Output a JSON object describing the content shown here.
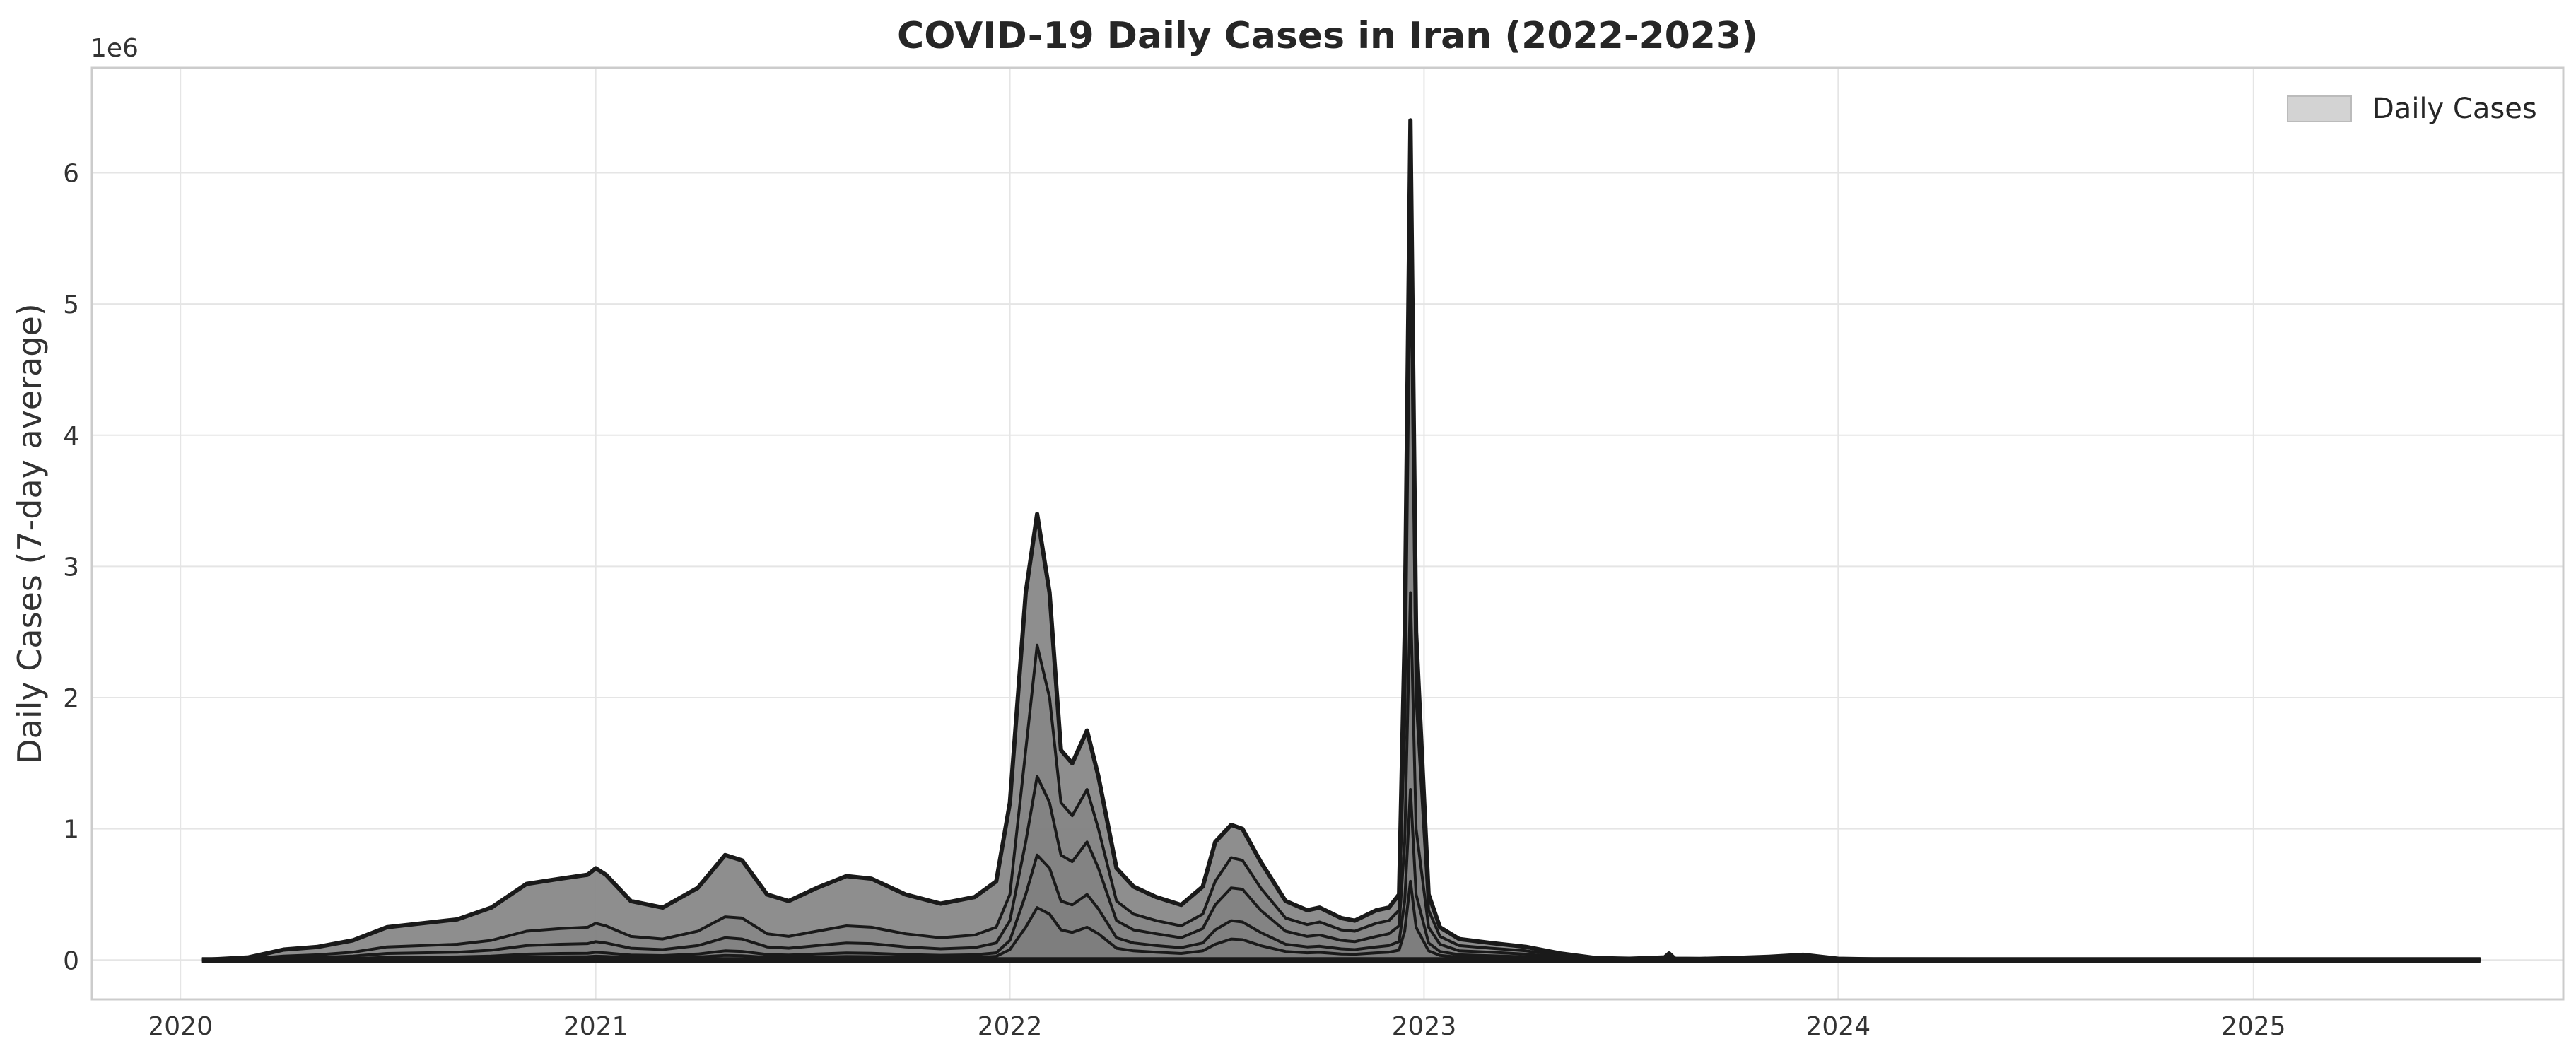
{
  "chart_data": {
    "type": "area",
    "title": "COVID-19 Daily Cases in Iran (2022-2023)",
    "xlabel": "",
    "ylabel": "Daily Cases (7-day average)",
    "y_scale_note": "1e6",
    "xlim": [
      "2019-10-15",
      "2025-10-01"
    ],
    "ylim": [
      -300000,
      6800000
    ],
    "x_ticks": [
      {
        "date": "2020-01-01",
        "label": "2020"
      },
      {
        "date": "2021-01-01",
        "label": "2021"
      },
      {
        "date": "2022-01-01",
        "label": "2022"
      },
      {
        "date": "2023-01-01",
        "label": "2023"
      },
      {
        "date": "2024-01-01",
        "label": "2024"
      },
      {
        "date": "2025-01-01",
        "label": "2025"
      }
    ],
    "y_ticks": [
      {
        "value": 0,
        "label": "0"
      },
      {
        "value": 1000000,
        "label": "1"
      },
      {
        "value": 2000000,
        "label": "2"
      },
      {
        "value": 3000000,
        "label": "3"
      },
      {
        "value": 4000000,
        "label": "4"
      },
      {
        "value": 5000000,
        "label": "5"
      },
      {
        "value": 6000000,
        "label": "6"
      }
    ],
    "grid": true,
    "legend": {
      "position": "top-right",
      "entries": [
        {
          "label": "Daily Cases",
          "color": "#d3d3d3"
        }
      ]
    },
    "colors": {
      "fill": "#888888",
      "line": "#1a1a1a",
      "grid": "#e5e5e5",
      "frame": "#cccccc"
    },
    "envelope": {
      "x": [
        "2020-01-20",
        "2020-03-01",
        "2020-04-01",
        "2020-05-01",
        "2020-06-01",
        "2020-07-01",
        "2020-08-01",
        "2020-09-01",
        "2020-10-01",
        "2020-11-01",
        "2020-12-01",
        "2020-12-25",
        "2021-01-01",
        "2021-01-10",
        "2021-02-01",
        "2021-03-01",
        "2021-04-01",
        "2021-04-25",
        "2021-05-10",
        "2021-06-01",
        "2021-06-20",
        "2021-07-15",
        "2021-08-10",
        "2021-09-01",
        "2021-10-01",
        "2021-11-01",
        "2021-12-01",
        "2021-12-20",
        "2022-01-01",
        "2022-01-15",
        "2022-01-25",
        "2022-02-05",
        "2022-02-15",
        "2022-02-25",
        "2022-03-10",
        "2022-03-20",
        "2022-04-05",
        "2022-04-20",
        "2022-05-10",
        "2022-06-01",
        "2022-06-20",
        "2022-07-01",
        "2022-07-15",
        "2022-07-25",
        "2022-08-10",
        "2022-09-01",
        "2022-09-20",
        "2022-10-01",
        "2022-10-20",
        "2022-11-01",
        "2022-11-20",
        "2022-12-01",
        "2022-12-10",
        "2022-12-15",
        "2022-12-20",
        "2022-12-25",
        "2023-01-05",
        "2023-01-15",
        "2023-02-01",
        "2023-03-01",
        "2023-04-01",
        "2023-05-01",
        "2023-06-01",
        "2023-07-01",
        "2023-08-01",
        "2023-08-05",
        "2023-08-10",
        "2023-09-01",
        "2023-10-01",
        "2023-11-01",
        "2023-12-01",
        "2024-01-01",
        "2024-02-01",
        "2024-06-01",
        "2025-01-01",
        "2025-06-01",
        "2025-07-20"
      ],
      "y": [
        0,
        20000,
        80000,
        100000,
        150000,
        250000,
        280000,
        310000,
        400000,
        580000,
        620000,
        650000,
        700000,
        650000,
        450000,
        400000,
        550000,
        800000,
        760000,
        500000,
        450000,
        550000,
        640000,
        620000,
        500000,
        430000,
        480000,
        600000,
        1200000,
        2800000,
        3400000,
        2800000,
        1600000,
        1500000,
        1750000,
        1400000,
        700000,
        560000,
        480000,
        420000,
        560000,
        900000,
        1030000,
        1000000,
        750000,
        450000,
        380000,
        400000,
        320000,
        300000,
        380000,
        400000,
        500000,
        2500000,
        6400000,
        2500000,
        500000,
        250000,
        160000,
        130000,
        100000,
        50000,
        15000,
        10000,
        20000,
        50000,
        10000,
        8000,
        15000,
        25000,
        40000,
        10000,
        5000,
        4000,
        3000,
        3000,
        2000
      ]
    },
    "series": [
      {
        "values": [
          0,
          10000,
          30000,
          40000,
          60000,
          100000,
          110000,
          120000,
          150000,
          220000,
          240000,
          250000,
          280000,
          260000,
          180000,
          160000,
          220000,
          330000,
          320000,
          200000,
          180000,
          220000,
          260000,
          250000,
          200000,
          170000,
          190000,
          250000,
          500000,
          1600000,
          2400000,
          2000000,
          1200000,
          1100000,
          1300000,
          1000000,
          450000,
          350000,
          300000,
          260000,
          350000,
          600000,
          780000,
          760000,
          550000,
          320000,
          270000,
          290000,
          230000,
          220000,
          280000,
          300000,
          380000,
          1800000,
          5600000,
          2000000,
          380000,
          180000,
          110000,
          90000,
          70000,
          35000,
          10000,
          7000,
          14000,
          35000,
          7000,
          5000,
          10000,
          18000,
          28000,
          7000,
          3500,
          2800,
          2000,
          2000,
          1500
        ]
      },
      {
        "values": [
          0,
          5000,
          15000,
          20000,
          30000,
          50000,
          55000,
          60000,
          75000,
          110000,
          120000,
          125000,
          140000,
          130000,
          90000,
          80000,
          110000,
          170000,
          160000,
          100000,
          90000,
          110000,
          130000,
          125000,
          100000,
          85000,
          95000,
          130000,
          300000,
          900000,
          1400000,
          1200000,
          800000,
          750000,
          900000,
          700000,
          300000,
          230000,
          200000,
          170000,
          240000,
          420000,
          550000,
          540000,
          380000,
          220000,
          180000,
          190000,
          150000,
          140000,
          180000,
          200000,
          260000,
          900000,
          2800000,
          1000000,
          250000,
          120000,
          70000,
          60000,
          45000,
          22000,
          6000,
          4500,
          9000,
          22000,
          4500,
          3000,
          6000,
          11000,
          17000,
          4500,
          2200,
          1800,
          1300,
          1300,
          1000
        ]
      },
      {
        "values": [
          0,
          2000,
          6000,
          8000,
          12000,
          20000,
          22000,
          24000,
          30000,
          45000,
          50000,
          52000,
          58000,
          54000,
          38000,
          34000,
          46000,
          70000,
          66000,
          42000,
          38000,
          46000,
          54000,
          52000,
          42000,
          36000,
          40000,
          55000,
          150000,
          500000,
          800000,
          700000,
          450000,
          420000,
          500000,
          390000,
          170000,
          130000,
          110000,
          95000,
          130000,
          230000,
          300000,
          290000,
          210000,
          120000,
          100000,
          105000,
          85000,
          80000,
          100000,
          110000,
          140000,
          450000,
          1300000,
          500000,
          130000,
          65000,
          40000,
          33000,
          25000,
          12000,
          3500,
          2500,
          5000,
          12000,
          2500,
          1800,
          3500,
          6000,
          9500,
          2500,
          1200,
          1000,
          700,
          700,
          500
        ]
      },
      {
        "values": [
          0,
          1000,
          3000,
          4000,
          6000,
          10000,
          11000,
          12000,
          15000,
          22000,
          25000,
          26000,
          29000,
          27000,
          19000,
          17000,
          23000,
          35000,
          33000,
          21000,
          19000,
          23000,
          27000,
          26000,
          21000,
          18000,
          20000,
          28000,
          80000,
          250000,
          400000,
          350000,
          230000,
          210000,
          250000,
          200000,
          90000,
          70000,
          60000,
          50000,
          70000,
          120000,
          160000,
          155000,
          110000,
          65000,
          55000,
          58000,
          46000,
          44000,
          55000,
          60000,
          75000,
          220000,
          600000,
          250000,
          70000,
          35000,
          22000,
          18000,
          14000,
          7000,
          2000,
          1500,
          3000,
          7000,
          1500,
          1000,
          2000,
          3500,
          5500,
          1500,
          700,
          600,
          400,
          400,
          300
        ]
      }
    ]
  }
}
